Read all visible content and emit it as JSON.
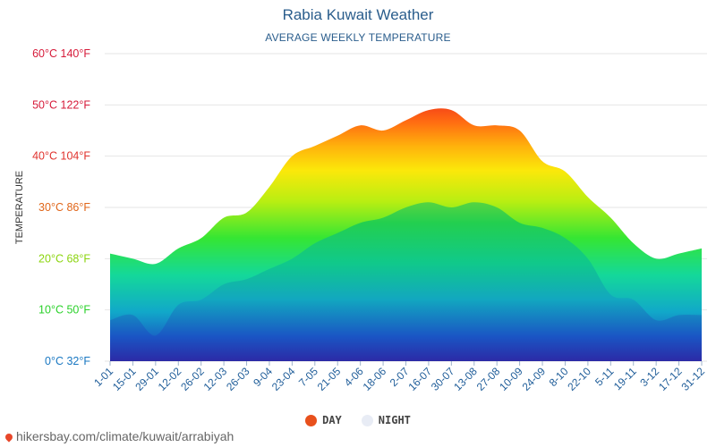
{
  "chart_data": {
    "type": "area",
    "title": "Rabia Kuwait Weather",
    "subtitle": "AVERAGE WEEKLY TEMPERATURE",
    "ylabel": "TEMPERATURE",
    "xlabel": "",
    "ylim": [
      0,
      60
    ],
    "y_ticks": [
      {
        "value": 0,
        "label": "0°C 32°F",
        "color": "#1a78c2"
      },
      {
        "value": 10,
        "label": "10°C 50°F",
        "color": "#2ad12a"
      },
      {
        "value": 20,
        "label": "20°C 68°F",
        "color": "#8bd40e"
      },
      {
        "value": 30,
        "label": "30°C 86°F",
        "color": "#e0661a"
      },
      {
        "value": 40,
        "label": "40°C 104°F",
        "color": "#e0332e"
      },
      {
        "value": 50,
        "label": "50°C 122°F",
        "color": "#d61b3a"
      },
      {
        "value": 60,
        "label": "60°C 140°F",
        "color": "#d61b3a"
      }
    ],
    "categories": [
      "1-01",
      "15-01",
      "29-01",
      "12-02",
      "26-02",
      "12-03",
      "26-03",
      "9-04",
      "23-04",
      "7-05",
      "21-05",
      "4-06",
      "18-06",
      "2-07",
      "16-07",
      "30-07",
      "13-08",
      "27-08",
      "10-09",
      "24-09",
      "8-10",
      "22-10",
      "5-11",
      "19-11",
      "3-12",
      "17-12",
      "31-12"
    ],
    "grid": true,
    "legend_position": "bottom",
    "series": [
      {
        "name": "DAY",
        "color": "#e8501c",
        "values": [
          21,
          20,
          19,
          22,
          24,
          28,
          29,
          34,
          40,
          42,
          44,
          46,
          45,
          47,
          49,
          49,
          46,
          46,
          45,
          39,
          37,
          32,
          28,
          23,
          20,
          21,
          22
        ]
      },
      {
        "name": "NIGHT",
        "color": "#e8ecf5",
        "values": [
          8,
          9,
          5,
          11,
          12,
          15,
          16,
          18,
          20,
          23,
          25,
          27,
          28,
          30,
          31,
          30,
          31,
          30,
          27,
          26,
          24,
          20,
          13,
          12,
          8,
          9,
          9
        ]
      }
    ]
  },
  "footer": {
    "text": "hikersbay.com/climate/kuwait/arrabiyah"
  }
}
